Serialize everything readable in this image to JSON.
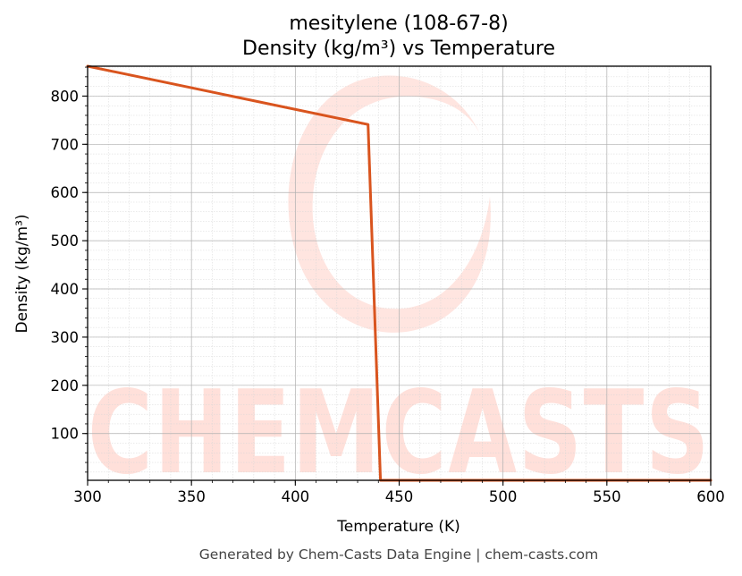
{
  "chart_data": {
    "type": "line",
    "title": "mesitylene (108-67-8)",
    "subtitle": "Density (kg/m³) vs Temperature",
    "xlabel": "Temperature (K)",
    "ylabel": "Density (kg/m³)",
    "xlim": [
      300,
      600
    ],
    "ylim": [
      3,
      862
    ],
    "x_ticks": [
      300,
      350,
      400,
      450,
      500,
      550,
      600
    ],
    "y_ticks": [
      100,
      200,
      300,
      400,
      500,
      600,
      700,
      800
    ],
    "grid": true,
    "series": [
      {
        "color": "#d9541e",
        "x": [
          300,
          435,
          441,
          600
        ],
        "y": [
          862,
          741,
          3,
          3
        ]
      }
    ]
  },
  "footer": "Generated by Chem-Casts Data Engine | chem-casts.com",
  "watermark": "CHEMCASTS",
  "colors": {
    "line": "#d9541e",
    "watermark": "#ffe0da",
    "grid": "#b0b0b0"
  }
}
